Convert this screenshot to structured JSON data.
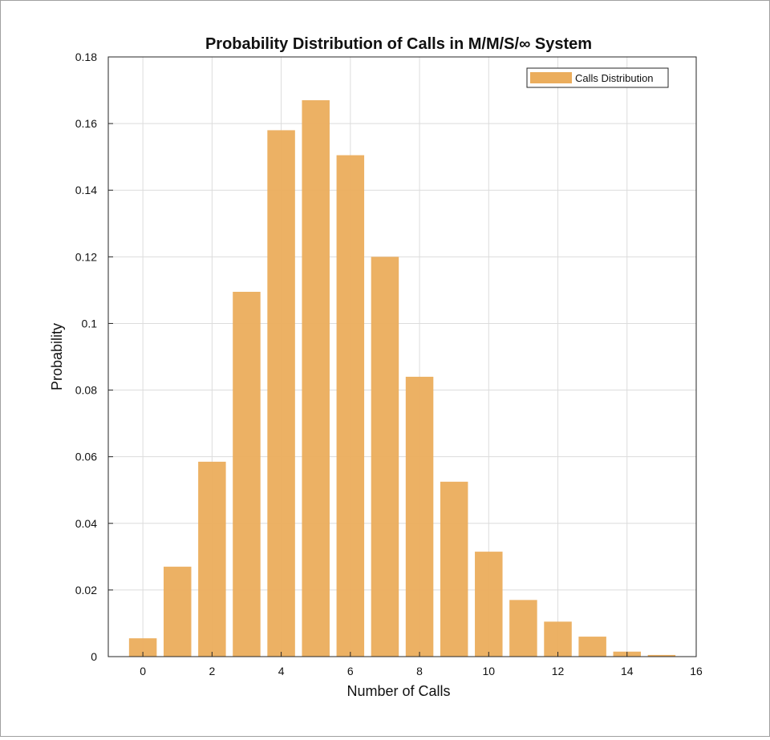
{
  "chart_data": {
    "type": "bar",
    "title": "Probability Distribution of Calls in M/M/S/∞ System",
    "xlabel": "Number of Calls",
    "ylabel": "Probability",
    "x": [
      0,
      1,
      2,
      3,
      4,
      5,
      6,
      7,
      8,
      9,
      10,
      11,
      12,
      13,
      14,
      15
    ],
    "series": [
      {
        "name": "Calls Distribution",
        "color": "#EBAD5C",
        "values": [
          0.0055,
          0.027,
          0.0585,
          0.1095,
          0.158,
          0.167,
          0.1505,
          0.12,
          0.084,
          0.0525,
          0.0315,
          0.017,
          0.0105,
          0.006,
          0.0015,
          0.0005
        ]
      }
    ],
    "xlim": [
      -1,
      16
    ],
    "ylim": [
      0,
      0.18
    ],
    "xticks": [
      "0",
      "2",
      "4",
      "6",
      "8",
      "10",
      "12",
      "14",
      "16"
    ],
    "yticks": [
      "0",
      "0.02",
      "0.04",
      "0.06",
      "0.08",
      "0.1",
      "0.12",
      "0.14",
      "0.16",
      "0.18"
    ],
    "grid": true,
    "legend_position": "top-right"
  }
}
